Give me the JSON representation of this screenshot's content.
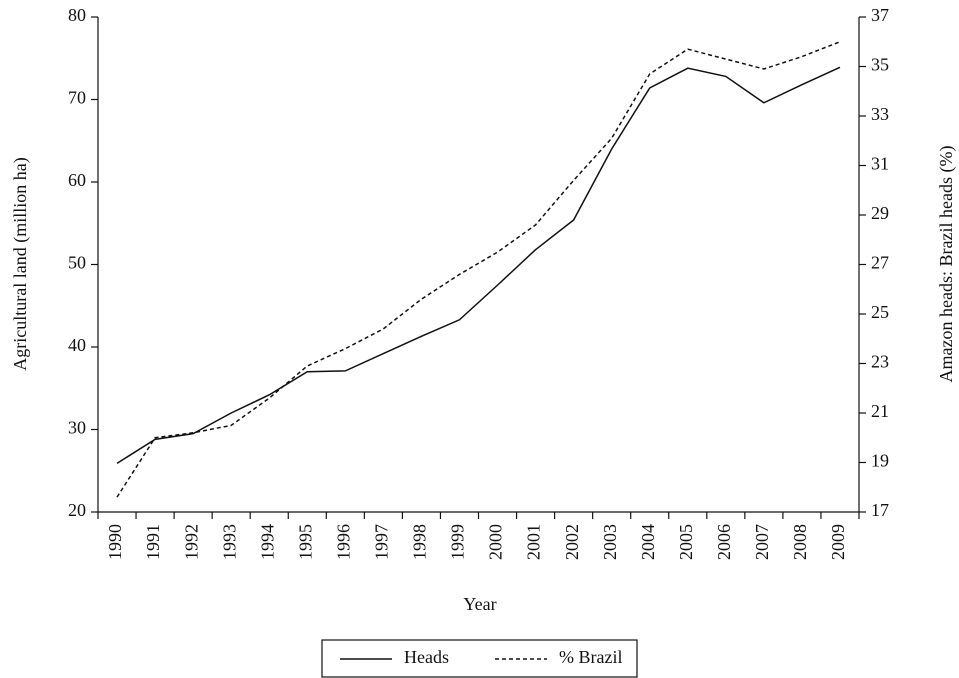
{
  "chart_data": {
    "type": "line",
    "x_label": "Year",
    "y_label": "Agricultural land (million ha)",
    "y2_label": "Amazon heads: Brazil heads (%)",
    "categories": [
      "1990",
      "1991",
      "1992",
      "1993",
      "1994",
      "1995",
      "1996",
      "1997",
      "1998",
      "1999",
      "2000",
      "2001",
      "2002",
      "2003",
      "2004",
      "2005",
      "2006",
      "2007",
      "2008",
      "2009"
    ],
    "ylim": [
      20,
      80
    ],
    "yticks": [
      20,
      30,
      40,
      50,
      60,
      70,
      80
    ],
    "y2lim": [
      17,
      37
    ],
    "y2ticks": [
      17,
      19,
      21,
      23,
      25,
      27,
      29,
      31,
      33,
      35,
      37
    ],
    "series": [
      {
        "name": "Heads",
        "color": "#111111",
        "dash": "solid",
        "values": [
          25.9,
          28.8,
          29.5,
          32.0,
          34.2,
          37.0,
          37.1,
          39.2,
          41.3,
          43.3,
          47.5,
          51.8,
          55.4,
          64.0,
          71.4,
          73.8,
          72.8,
          69.6,
          71.8,
          73.9
        ]
      },
      {
        "name": "% Brazil",
        "color": "#111111",
        "dash": "dashed",
        "axis": "y2",
        "values": [
          17.6,
          20.0,
          20.2,
          20.5,
          21.6,
          22.9,
          23.6,
          24.4,
          25.6,
          26.6,
          27.5,
          28.6,
          30.4,
          32.1,
          34.7,
          35.7,
          35.3,
          34.9,
          35.4,
          36.0
        ]
      }
    ],
    "legend": "bottom"
  }
}
